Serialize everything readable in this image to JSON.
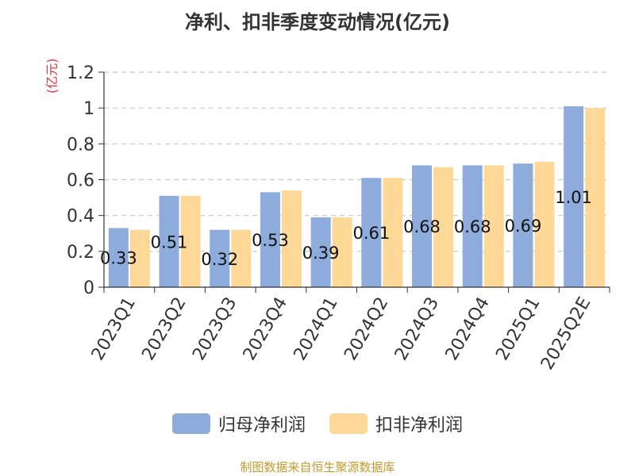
{
  "chart_data": {
    "type": "bar",
    "title": "净利、扣非季度变动情况(亿元)",
    "ylabel": "(亿元)",
    "xlabel": "",
    "categories": [
      "2023Q1",
      "2023Q2",
      "2023Q3",
      "2023Q4",
      "2024Q1",
      "2024Q2",
      "2024Q3",
      "2024Q4",
      "2025Q1",
      "2025Q2E"
    ],
    "series": [
      {
        "name": "归母净利润",
        "color": "#8dabdb",
        "values": [
          0.33,
          0.51,
          0.32,
          0.53,
          0.39,
          0.61,
          0.68,
          0.68,
          0.69,
          1.01
        ],
        "data_labels": [
          "0.33",
          "0.51",
          "0.32",
          "0.53",
          "0.39",
          "0.61",
          "0.68",
          "0.68",
          "0.69",
          "1.01"
        ]
      },
      {
        "name": "扣非净利润",
        "color": "#fdd896",
        "values": [
          0.32,
          0.51,
          0.32,
          0.54,
          0.39,
          0.61,
          0.67,
          0.68,
          0.7,
          1.0
        ]
      }
    ],
    "ylim": [
      0,
      1.2
    ],
    "yticks": [
      "0",
      "0.2",
      "0.4",
      "0.6",
      "0.8",
      "1",
      "1.2"
    ],
    "grid": true,
    "legend_position": "bottom"
  },
  "source": "制图数据来自恒生聚源数据库"
}
